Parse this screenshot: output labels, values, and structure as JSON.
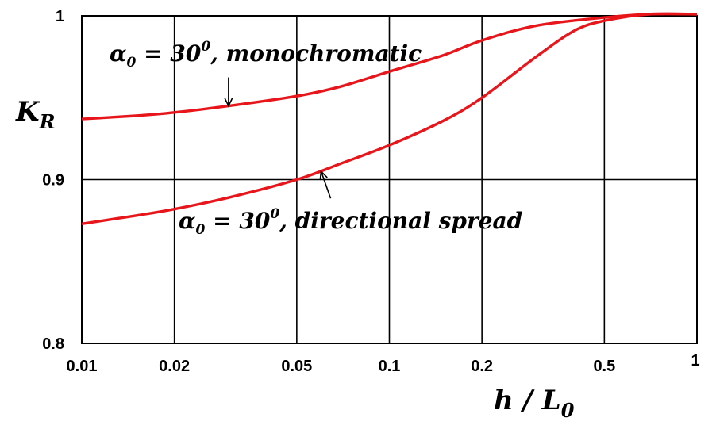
{
  "chart_data": {
    "type": "line",
    "x_scale": "log",
    "xlim": [
      0.01,
      1
    ],
    "ylim": [
      0.8,
      1
    ],
    "grid": true,
    "x_ticks": [
      "0.01",
      "0.02",
      "0.05",
      "0.1",
      "0.2",
      "0.5",
      "1"
    ],
    "y_ticks": [
      "0.8",
      "0.9",
      "1"
    ],
    "xlabel": {
      "main": "h / L",
      "sub": "0"
    },
    "ylabel": {
      "main": "K",
      "sub": "R"
    },
    "series": [
      {
        "x": [
          0.01,
          0.015,
          0.02,
          0.03,
          0.05,
          0.07,
          0.1,
          0.15,
          0.2,
          0.3,
          0.5,
          0.7,
          1.0
        ],
        "y": [
          0.937,
          0.939,
          0.941,
          0.945,
          0.951,
          0.957,
          0.966,
          0.976,
          0.985,
          0.994,
          0.999,
          1.001,
          1.001
        ],
        "color": "#e8151b"
      },
      {
        "x": [
          0.01,
          0.015,
          0.02,
          0.03,
          0.05,
          0.07,
          0.1,
          0.15,
          0.2,
          0.3,
          0.4,
          0.5,
          0.7,
          1.0
        ],
        "y": [
          0.873,
          0.878,
          0.882,
          0.889,
          0.9,
          0.91,
          0.921,
          0.936,
          0.95,
          0.975,
          0.991,
          0.997,
          1.001,
          1.001
        ],
        "color": "#e8151b"
      }
    ],
    "annotations": [
      {
        "symbol": "α",
        "symbol_sub": "0",
        "relation": " = ",
        "value": "30",
        "value_sup": "0",
        "tail": ", monochromatic",
        "arrow_target": {
          "x": 0.03,
          "y": 0.945
        }
      },
      {
        "symbol": "α",
        "symbol_sub": "0",
        "relation": " = ",
        "value": "30",
        "value_sup": "0",
        "tail": ", directional spread",
        "arrow_target": {
          "x": 0.06,
          "y": 0.905
        }
      }
    ]
  }
}
